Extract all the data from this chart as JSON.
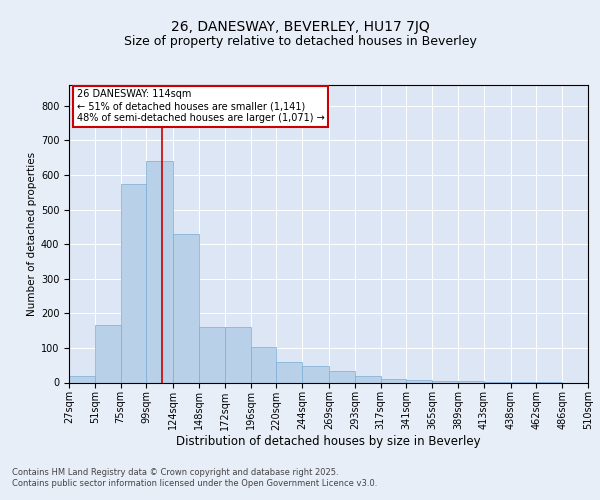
{
  "title": "26, DANESWAY, BEVERLEY, HU17 7JQ",
  "subtitle": "Size of property relative to detached houses in Beverley",
  "xlabel": "Distribution of detached houses by size in Beverley",
  "ylabel": "Number of detached properties",
  "property_label": "26 DANESWAY: 114sqm",
  "annotation_line1": "← 51% of detached houses are smaller (1,141)",
  "annotation_line2": "48% of semi-detached houses are larger (1,071) →",
  "bin_edges": [
    27,
    51,
    75,
    99,
    124,
    148,
    172,
    196,
    220,
    244,
    269,
    293,
    317,
    341,
    365,
    389,
    413,
    438,
    462,
    486,
    510
  ],
  "bin_labels": [
    "27sqm",
    "51sqm",
    "75sqm",
    "99sqm",
    "124sqm",
    "148sqm",
    "172sqm",
    "196sqm",
    "220sqm",
    "244sqm",
    "269sqm",
    "293sqm",
    "317sqm",
    "341sqm",
    "365sqm",
    "389sqm",
    "413sqm",
    "438sqm",
    "462sqm",
    "486sqm",
    "510sqm"
  ],
  "bar_heights": [
    20,
    165,
    575,
    640,
    430,
    160,
    160,
    102,
    58,
    48,
    33,
    18,
    10,
    8,
    5,
    4,
    2,
    1,
    1,
    0,
    5
  ],
  "bar_color": "#b8d0e8",
  "bar_edge_color": "#7aadd4",
  "vline_x": 114,
  "vline_color": "#cc0000",
  "ylim": [
    0,
    860
  ],
  "yticks": [
    0,
    100,
    200,
    300,
    400,
    500,
    600,
    700,
    800
  ],
  "background_color": "#e8eef8",
  "plot_bg_color": "#dce6f4",
  "grid_color": "#ffffff",
  "footer_line1": "Contains HM Land Registry data © Crown copyright and database right 2025.",
  "footer_line2": "Contains public sector information licensed under the Open Government Licence v3.0.",
  "title_fontsize": 10,
  "subtitle_fontsize": 9,
  "ylabel_fontsize": 7.5,
  "xlabel_fontsize": 8.5,
  "annotation_box_facecolor": "#ffffff",
  "annotation_box_edgecolor": "#cc0000",
  "annotation_fontsize": 7,
  "tick_labelsize": 7,
  "footer_fontsize": 6
}
